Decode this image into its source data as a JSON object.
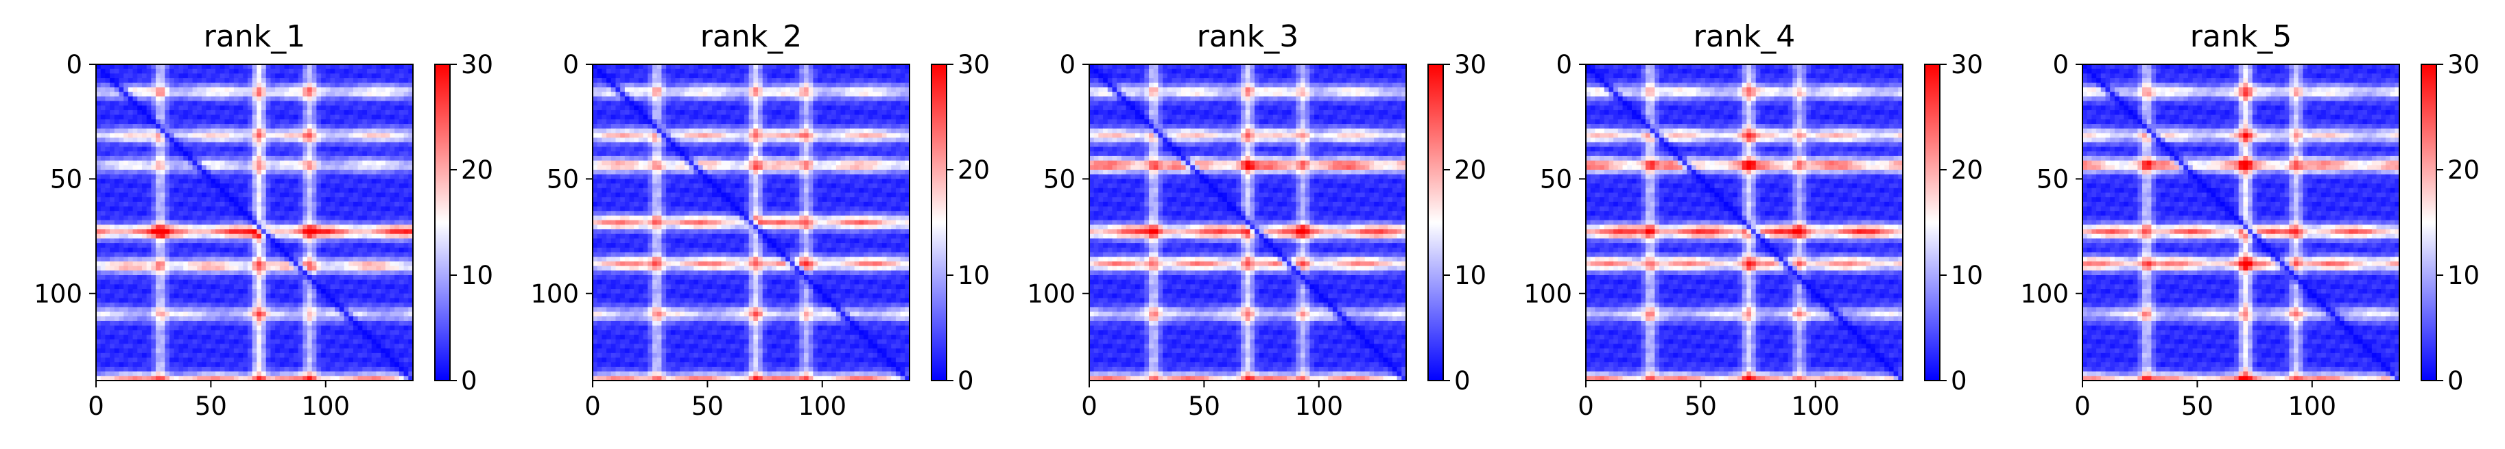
{
  "chart_data": [
    {
      "type": "heatmap",
      "title": "rank_1",
      "xlim": [
        0,
        138
      ],
      "ylim": [
        138,
        0
      ],
      "xticks": [
        0,
        50,
        100
      ],
      "yticks": [
        0,
        50,
        100
      ],
      "colorbar": {
        "min": 0,
        "max": 30,
        "ticks": [
          0,
          10,
          20,
          30
        ],
        "cmap": "bwr"
      },
      "bands": [
        {
          "row": 11,
          "value": 14
        },
        {
          "row": 30,
          "value": 15
        },
        {
          "row": 43,
          "value": 13
        },
        {
          "row": 72,
          "value": 25
        },
        {
          "row": 87,
          "value": 18
        },
        {
          "row": 108,
          "value": 12
        },
        {
          "row": 137,
          "value": 22
        }
      ],
      "bright_columns": [
        {
          "col": 27,
          "value": 9
        },
        {
          "col": 70,
          "value": 12
        },
        {
          "col": 92,
          "value": 9
        }
      ]
    },
    {
      "type": "heatmap",
      "title": "rank_2",
      "xlim": [
        0,
        138
      ],
      "ylim": [
        138,
        0
      ],
      "xticks": [
        0,
        50,
        100
      ],
      "yticks": [
        0,
        50,
        100
      ],
      "colorbar": {
        "min": 0,
        "max": 30,
        "ticks": [
          0,
          10,
          20,
          30
        ],
        "cmap": "bwr"
      },
      "bands": [
        {
          "row": 11,
          "value": 14
        },
        {
          "row": 30,
          "value": 17
        },
        {
          "row": 43,
          "value": 18
        },
        {
          "row": 68,
          "value": 21
        },
        {
          "row": 86,
          "value": 20
        },
        {
          "row": 108,
          "value": 13
        },
        {
          "row": 137,
          "value": 22
        }
      ],
      "bright_columns": [
        {
          "col": 27,
          "value": 9
        },
        {
          "col": 70,
          "value": 10
        },
        {
          "col": 92,
          "value": 8
        }
      ]
    },
    {
      "type": "heatmap",
      "title": "rank_3",
      "xlim": [
        0,
        138
      ],
      "ylim": [
        138,
        0
      ],
      "xticks": [
        0,
        50,
        100
      ],
      "yticks": [
        0,
        50,
        100
      ],
      "colorbar": {
        "min": 0,
        "max": 30,
        "ticks": [
          0,
          10,
          20,
          30
        ],
        "cmap": "bwr"
      },
      "bands": [
        {
          "row": 11,
          "value": 14
        },
        {
          "row": 30,
          "value": 16
        },
        {
          "row": 43,
          "value": 23
        },
        {
          "row": 72,
          "value": 24
        },
        {
          "row": 86,
          "value": 20
        },
        {
          "row": 108,
          "value": 12
        },
        {
          "row": 137,
          "value": 22
        }
      ],
      "bright_columns": [
        {
          "col": 27,
          "value": 9
        },
        {
          "col": 68,
          "value": 10
        },
        {
          "col": 92,
          "value": 8
        }
      ]
    },
    {
      "type": "heatmap",
      "title": "rank_4",
      "xlim": [
        0,
        138
      ],
      "ylim": [
        138,
        0
      ],
      "xticks": [
        0,
        50,
        100
      ],
      "yticks": [
        0,
        50,
        100
      ],
      "colorbar": {
        "min": 0,
        "max": 30,
        "ticks": [
          0,
          10,
          20,
          30
        ],
        "cmap": "bwr"
      },
      "bands": [
        {
          "row": 11,
          "value": 14
        },
        {
          "row": 30,
          "value": 17
        },
        {
          "row": 43,
          "value": 22
        },
        {
          "row": 72,
          "value": 25
        },
        {
          "row": 86,
          "value": 20
        },
        {
          "row": 108,
          "value": 12
        },
        {
          "row": 137,
          "value": 22
        }
      ],
      "bright_columns": [
        {
          "col": 27,
          "value": 9
        },
        {
          "col": 70,
          "value": 10
        },
        {
          "col": 92,
          "value": 8
        }
      ]
    },
    {
      "type": "heatmap",
      "title": "rank_5",
      "xlim": [
        0,
        138
      ],
      "ylim": [
        138,
        0
      ],
      "xticks": [
        0,
        50,
        100
      ],
      "yticks": [
        0,
        50,
        100
      ],
      "colorbar": {
        "min": 0,
        "max": 30,
        "ticks": [
          0,
          10,
          20,
          30
        ],
        "cmap": "bwr"
      },
      "bands": [
        {
          "row": 11,
          "value": 14
        },
        {
          "row": 30,
          "value": 15
        },
        {
          "row": 43,
          "value": 21
        },
        {
          "row": 72,
          "value": 22
        },
        {
          "row": 86,
          "value": 21
        },
        {
          "row": 108,
          "value": 12
        },
        {
          "row": 137,
          "value": 22
        }
      ],
      "bright_columns": [
        {
          "col": 27,
          "value": 9
        },
        {
          "col": 70,
          "value": 12
        },
        {
          "col": 92,
          "value": 9
        }
      ]
    }
  ]
}
